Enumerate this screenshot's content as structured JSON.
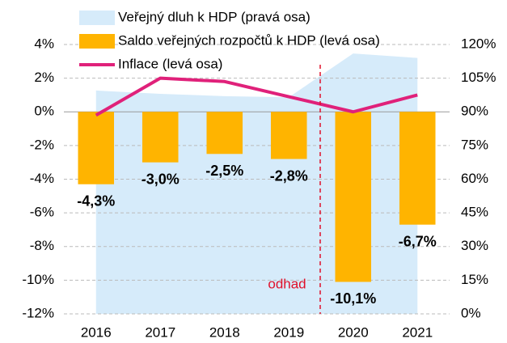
{
  "chart_data": {
    "type": "bar",
    "categories": [
      "2016",
      "2017",
      "2018",
      "2019",
      "2020",
      "2021"
    ],
    "series": [
      {
        "name": "Veřejný dluh k HDP (pravá osa)",
        "type": "area",
        "axis": "y2",
        "color": "#d6ebfa",
        "values": [
          99.5,
          98,
          97,
          96.5,
          116,
          114
        ]
      },
      {
        "name": "Saldo veřejných rozpočtů k HDP (levá osa)",
        "type": "bar",
        "color": "#ffb400",
        "values": [
          -4.3,
          -3.0,
          -2.5,
          -2.8,
          -10.1,
          -6.7
        ],
        "value_labels": [
          "-4,3%",
          "-3,0%",
          "-2,5%",
          "-2,8%",
          "-10,1%",
          "-6,7%"
        ]
      },
      {
        "name": "Inflace (levá osa)",
        "type": "line",
        "color": "#e0217a",
        "values": [
          -0.2,
          2.0,
          1.8,
          0.9,
          0.0,
          1.0
        ]
      }
    ],
    "ylim": [
      -12,
      4
    ],
    "yticks": [
      {
        "value": -12,
        "label": "-12%"
      },
      {
        "value": -10,
        "label": "-10%"
      },
      {
        "value": -8,
        "label": "-8%"
      },
      {
        "value": -6,
        "label": "-6%"
      },
      {
        "value": -4,
        "label": "-4%"
      },
      {
        "value": -2,
        "label": "-2%"
      },
      {
        "value": 0,
        "label": "0%"
      },
      {
        "value": 2,
        "label": "2%"
      },
      {
        "value": 4,
        "label": "4%"
      }
    ],
    "y2lim": [
      0,
      120
    ],
    "y2ticks": [
      {
        "value": 0,
        "label": "0%"
      },
      {
        "value": 15,
        "label": "15%"
      },
      {
        "value": 30,
        "label": "30%"
      },
      {
        "value": 45,
        "label": "45%"
      },
      {
        "value": 60,
        "label": "60%"
      },
      {
        "value": 75,
        "label": "75%"
      },
      {
        "value": 90,
        "label": "90%"
      },
      {
        "value": 105,
        "label": "105%"
      },
      {
        "value": 120,
        "label": "120%"
      }
    ],
    "grid": true,
    "annotation": "odhad",
    "legend": "top"
  }
}
